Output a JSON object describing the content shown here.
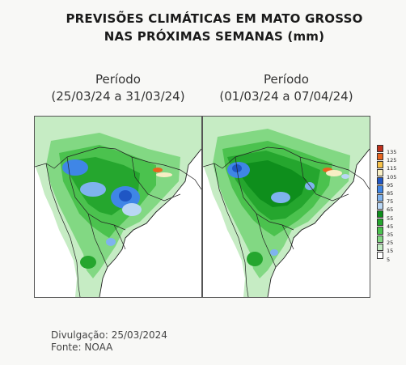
{
  "title": {
    "line1": "PREVISÕES CLIMÁTICAS EM MATO GROSSO",
    "line2": "NAS PRÓXIMAS SEMANAS (mm)"
  },
  "maps": [
    {
      "period_label": "Período",
      "period_range": "(25/03/24 a 31/03/24)"
    },
    {
      "period_label": "Período",
      "period_range": "(01/03/24 a 07/04/24)"
    }
  ],
  "legend": {
    "items": [
      {
        "value": "135",
        "color": "#c0301c"
      },
      {
        "value": "125",
        "color": "#e8641e"
      },
      {
        "value": "115",
        "color": "#f7c24a"
      },
      {
        "value": "105",
        "color": "#f7eec4"
      },
      {
        "value": "95",
        "color": "#1f56c4"
      },
      {
        "value": "85",
        "color": "#3f86e6"
      },
      {
        "value": "75",
        "color": "#7fb3ee"
      },
      {
        "value": "65",
        "color": "#b9d7f5"
      },
      {
        "value": "55",
        "color": "#0e8e1c"
      },
      {
        "value": "45",
        "color": "#25a62e"
      },
      {
        "value": "35",
        "color": "#4bc24e"
      },
      {
        "value": "25",
        "color": "#82d883"
      },
      {
        "value": "15",
        "color": "#c2ecc2"
      },
      {
        "value": "5",
        "color": "#ffffff"
      }
    ]
  },
  "footer": {
    "release": "Divulgação: 25/03/2024",
    "source": "Fonte: NOAA"
  }
}
